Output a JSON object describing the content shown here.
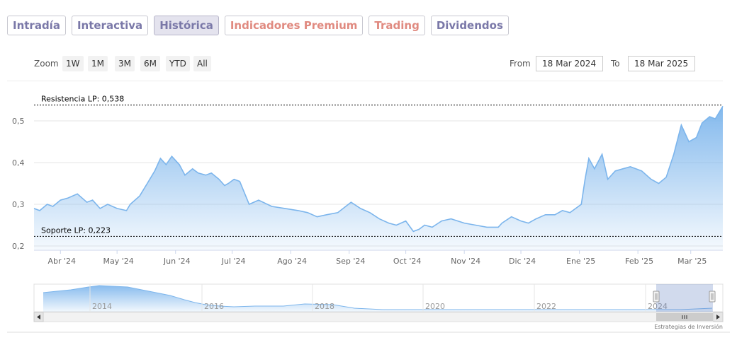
{
  "tabs": [
    {
      "label": "Intradía",
      "active": false,
      "premium": false
    },
    {
      "label": "Interactiva",
      "active": false,
      "premium": false
    },
    {
      "label": "Histórica",
      "active": true,
      "premium": false
    },
    {
      "label": "Indicadores Premium",
      "active": false,
      "premium": true
    },
    {
      "label": "Trading",
      "active": false,
      "premium": true
    },
    {
      "label": "Dividendos",
      "active": false,
      "premium": false
    }
  ],
  "zoom": {
    "label": "Zoom",
    "buttons": [
      "1W",
      "1M",
      "3M",
      "6M",
      "YTD",
      "All"
    ]
  },
  "range": {
    "from_label": "From",
    "from": "18 Mar 2024",
    "to_label": "To",
    "to": "18 Mar 2025"
  },
  "credit": "Estrategias de Inversión",
  "colors": {
    "line": "#7cb5ec",
    "tab_text": "#7a78a8",
    "premium_text": "#e08a80"
  },
  "chart_data": {
    "type": "area",
    "x_axis": {
      "tick_labels": [
        "Abr '24",
        "May '24",
        "Jun '24",
        "Jul '24",
        "Ago '24",
        "Sep '24",
        "Oct '24",
        "Nov '24",
        "Dic '24",
        "Ene '25",
        "Feb '25",
        "Mar '25"
      ]
    },
    "y_axis": {
      "tick_labels": [
        "0,2",
        "0,3",
        "0,4",
        "0,5"
      ],
      "ticks": [
        0.2,
        0.3,
        0.4,
        0.5
      ],
      "range": [
        0.2,
        0.55
      ]
    },
    "grid": true,
    "series": [
      {
        "x": [
          "2024-03-18",
          "2024-03-21",
          "2024-03-25",
          "2024-03-28",
          "2024-04-01",
          "2024-04-05",
          "2024-04-10",
          "2024-04-15",
          "2024-04-18",
          "2024-04-22",
          "2024-04-26",
          "2024-05-01",
          "2024-05-06",
          "2024-05-08",
          "2024-05-13",
          "2024-05-17",
          "2024-05-21",
          "2024-05-24",
          "2024-05-27",
          "2024-05-30",
          "2024-06-03",
          "2024-06-06",
          "2024-06-10",
          "2024-06-13",
          "2024-06-17",
          "2024-06-20",
          "2024-06-24",
          "2024-06-27",
          "2024-06-29",
          "2024-07-02",
          "2024-07-05",
          "2024-07-10",
          "2024-07-15",
          "2024-07-22",
          "2024-07-29",
          "2024-08-05",
          "2024-08-10",
          "2024-08-15",
          "2024-08-20",
          "2024-08-26",
          "2024-09-02",
          "2024-09-07",
          "2024-09-12",
          "2024-09-17",
          "2024-09-22",
          "2024-09-26",
          "2024-10-01",
          "2024-10-05",
          "2024-10-08",
          "2024-10-11",
          "2024-10-15",
          "2024-10-20",
          "2024-10-25",
          "2024-11-01",
          "2024-11-07",
          "2024-11-13",
          "2024-11-19",
          "2024-11-21",
          "2024-11-26",
          "2024-12-01",
          "2024-12-05",
          "2024-12-09",
          "2024-12-14",
          "2024-12-19",
          "2024-12-23",
          "2024-12-27",
          "2025-01-02",
          "2025-01-04",
          "2025-01-06",
          "2025-01-09",
          "2025-01-13",
          "2025-01-16",
          "2025-01-20",
          "2025-01-24",
          "2025-01-28",
          "2025-02-03",
          "2025-02-08",
          "2025-02-12",
          "2025-02-16",
          "2025-02-20",
          "2025-02-24",
          "2025-02-28",
          "2025-03-04",
          "2025-03-07",
          "2025-03-11",
          "2025-03-14",
          "2025-03-18"
        ],
        "values": [
          0.29,
          0.285,
          0.3,
          0.295,
          0.31,
          0.315,
          0.325,
          0.305,
          0.31,
          0.29,
          0.3,
          0.29,
          0.285,
          0.3,
          0.32,
          0.35,
          0.38,
          0.41,
          0.395,
          0.415,
          0.395,
          0.37,
          0.385,
          0.375,
          0.37,
          0.375,
          0.36,
          0.345,
          0.35,
          0.36,
          0.355,
          0.3,
          0.31,
          0.295,
          0.29,
          0.285,
          0.28,
          0.27,
          0.275,
          0.28,
          0.305,
          0.29,
          0.28,
          0.265,
          0.255,
          0.25,
          0.26,
          0.235,
          0.24,
          0.25,
          0.245,
          0.26,
          0.265,
          0.255,
          0.25,
          0.245,
          0.245,
          0.255,
          0.27,
          0.26,
          0.255,
          0.265,
          0.275,
          0.275,
          0.285,
          0.28,
          0.3,
          0.36,
          0.41,
          0.385,
          0.42,
          0.36,
          0.38,
          0.385,
          0.39,
          0.38,
          0.36,
          0.35,
          0.365,
          0.42,
          0.49,
          0.45,
          0.46,
          0.495,
          0.51,
          0.505,
          0.535
        ]
      }
    ],
    "plot_lines": [
      {
        "label": "Resistencia LP: 0,538",
        "value": 0.538
      },
      {
        "label": "Soporte LP: 0,223",
        "value": 0.223
      }
    ],
    "navigator": {
      "year_labels": [
        "2014",
        "2016",
        "2018",
        "2020",
        "2022",
        "2024"
      ]
    }
  }
}
